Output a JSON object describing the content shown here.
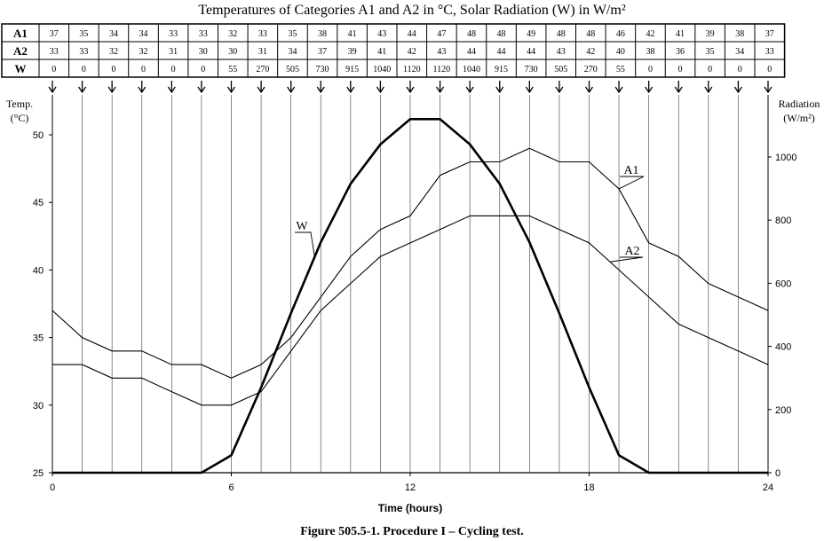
{
  "chart_data": {
    "type": "line",
    "title": "Temperatures of Categories A1 and A2 in °C, Solar Radiation (W) in W/m²",
    "caption": "Figure 505.5-1.  Procedure I – Cycling test.",
    "xlabel": "Time (hours)",
    "ylabel_left": "Temp. (°C)",
    "ylabel_left_line1": "Temp.",
    "ylabel_left_line2": "(°C)",
    "ylabel_right": "Radiation (W/m²)",
    "ylabel_right_line1": "Radiation",
    "ylabel_right_line2": "(W/m²)",
    "xlim": [
      0,
      24
    ],
    "ylim_left": [
      25,
      52.5
    ],
    "ylim_right": [
      0,
      1170
    ],
    "x_ticks": [
      0,
      6,
      12,
      18,
      24
    ],
    "y_ticks_left": [
      25,
      30,
      35,
      40,
      45,
      50
    ],
    "y_ticks_right": [
      0,
      200,
      400,
      600,
      800,
      1000
    ],
    "grid": "vertical lines every hour",
    "x": [
      0,
      1,
      2,
      3,
      4,
      5,
      6,
      7,
      8,
      9,
      10,
      11,
      12,
      13,
      14,
      15,
      16,
      17,
      18,
      19,
      20,
      21,
      22,
      23,
      24
    ],
    "series": [
      {
        "name": "A1",
        "axis": "left",
        "values": [
          37,
          35,
          34,
          34,
          33,
          33,
          32,
          33,
          35,
          38,
          41,
          43,
          44,
          47,
          48,
          48,
          49,
          48,
          48,
          46,
          42,
          41,
          39,
          38,
          37
        ]
      },
      {
        "name": "A2",
        "axis": "left",
        "values": [
          33,
          33,
          32,
          32,
          31,
          30,
          30,
          31,
          34,
          37,
          39,
          41,
          42,
          43,
          44,
          44,
          44,
          43,
          42,
          40,
          38,
          36,
          35,
          34,
          33
        ]
      },
      {
        "name": "W",
        "axis": "right",
        "values": [
          0,
          0,
          0,
          0,
          0,
          0,
          55,
          270,
          505,
          730,
          915,
          1040,
          1120,
          1120,
          1040,
          915,
          730,
          505,
          270,
          55,
          0,
          0,
          0,
          0,
          0
        ]
      }
    ],
    "table_row_labels": [
      "A1",
      "A2",
      "W"
    ]
  },
  "colors": {
    "line": "#000000",
    "grid": "#555555",
    "background": "#ffffff"
  }
}
